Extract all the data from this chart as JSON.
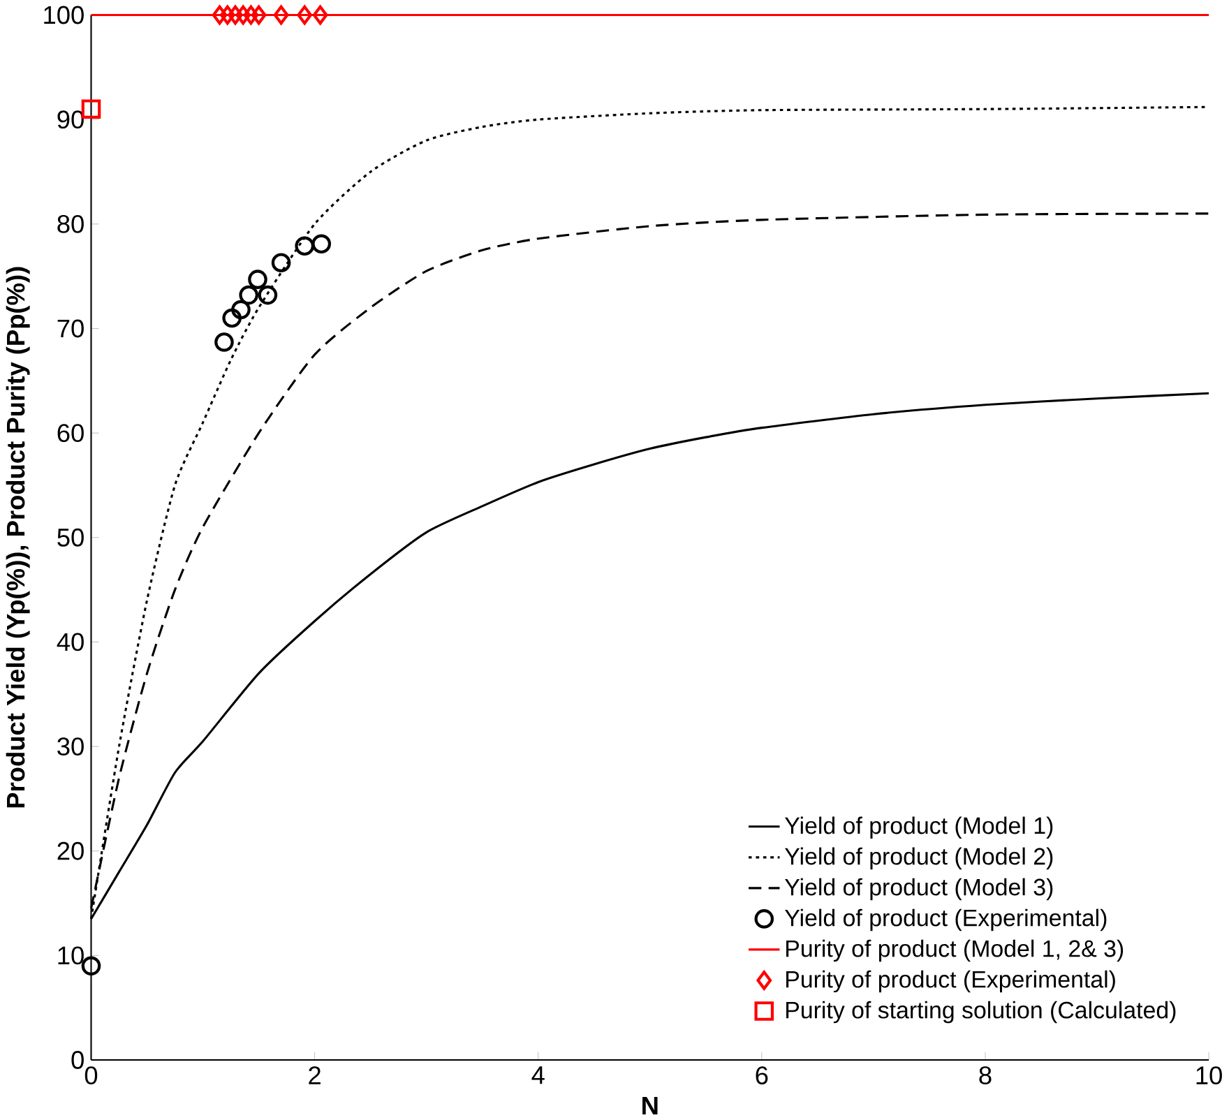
{
  "chart_data": {
    "type": "line",
    "xlabel": "N",
    "ylabel": "Product Yield (Yp(%)), Product Purity (Pp(%))",
    "xlim": [
      0,
      10
    ],
    "ylim": [
      0,
      100
    ],
    "xticks": [
      0,
      2,
      4,
      6,
      8,
      10
    ],
    "yticks": [
      0,
      10,
      20,
      30,
      40,
      50,
      60,
      70,
      80,
      90,
      100
    ],
    "legend": "bottom right",
    "series": [
      {
        "name": "Yield of product (Model 1)",
        "color": "#000000",
        "line_style": "solid",
        "marker": "none",
        "x": [
          0,
          0.25,
          0.5,
          0.75,
          1,
          1.5,
          2,
          2.5,
          3,
          3.5,
          4,
          4.5,
          5,
          5.5,
          6,
          7,
          8,
          9,
          10
        ],
        "values": [
          13.5,
          18,
          22.5,
          27.5,
          30.5,
          37,
          42,
          46.5,
          50.5,
          53,
          55.3,
          57,
          58.5,
          59.6,
          60.5,
          61.8,
          62.7,
          63.3,
          63.8
        ]
      },
      {
        "name": "Yield of product (Model 2)",
        "color": "#000000",
        "line_style": "dotted",
        "marker": "none",
        "x": [
          0,
          0.25,
          0.5,
          0.75,
          1,
          1.25,
          1.5,
          2,
          2.5,
          3,
          3.5,
          4,
          5,
          6,
          8,
          10
        ],
        "values": [
          13.5,
          30,
          44,
          55,
          61,
          67,
          72,
          80,
          85,
          88,
          89.3,
          90,
          90.6,
          90.9,
          91,
          91.2
        ]
      },
      {
        "name": "Yield of product (Model 3)",
        "color": "#000000",
        "line_style": "dashed",
        "marker": "none",
        "x": [
          0,
          0.25,
          0.5,
          0.75,
          1,
          1.5,
          2,
          2.5,
          3,
          3.5,
          4,
          5,
          6,
          8,
          10
        ],
        "values": [
          14.5,
          27,
          37,
          45,
          51,
          60,
          67.5,
          72,
          75.5,
          77.5,
          78.6,
          79.8,
          80.4,
          80.9,
          81
        ]
      },
      {
        "name": "Yield of product (Experimental)",
        "type": "scatter",
        "color": "#000000",
        "marker": "circle",
        "x": [
          0,
          1.19,
          1.26,
          1.34,
          1.41,
          1.49,
          1.58,
          1.7,
          1.91,
          2.06
        ],
        "values": [
          9,
          68.7,
          71,
          71.8,
          73.2,
          74.7,
          73.2,
          76.3,
          77.9,
          78.1
        ]
      },
      {
        "name": "Purity of product (Model 1, 2& 3)",
        "color": "#ff0000",
        "line_style": "solid",
        "marker": "none",
        "x": [
          0,
          10
        ],
        "values": [
          100,
          100
        ]
      },
      {
        "name": "Purity of product (Experimental)",
        "type": "scatter",
        "color": "#ff0000",
        "marker": "diamond",
        "x": [
          1.15,
          1.22,
          1.29,
          1.36,
          1.43,
          1.5,
          1.7,
          1.91,
          2.05
        ],
        "values": [
          100,
          100,
          100,
          100,
          100,
          100,
          100,
          100,
          100
        ]
      },
      {
        "name": "Purity of starting solution (Calculated)",
        "type": "scatter",
        "color": "#ff0000",
        "marker": "square",
        "x": [
          0
        ],
        "values": [
          91
        ]
      }
    ]
  }
}
